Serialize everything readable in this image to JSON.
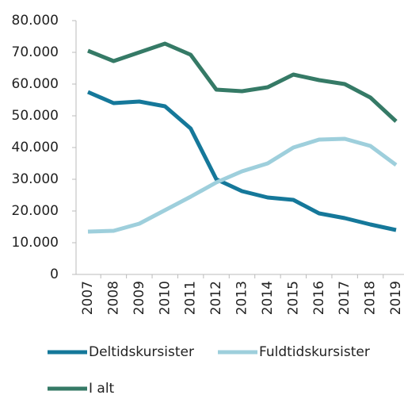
{
  "chart_data": {
    "type": "line",
    "categories": [
      "2007",
      "2008",
      "2009",
      "2010",
      "2011",
      "2012",
      "2013",
      "2014",
      "2015",
      "2016",
      "2017",
      "2018",
      "2019"
    ],
    "series": [
      {
        "name": "Deltidskursister",
        "color": "#15789a",
        "values": [
          57500,
          54000,
          54500,
          53000,
          46000,
          30000,
          26250,
          24250,
          23500,
          19250,
          17750,
          15750,
          14000
        ]
      },
      {
        "name": "Fuldtidskursister",
        "color": "#9ecfdc",
        "values": [
          13500,
          13750,
          16000,
          20250,
          24500,
          29000,
          32500,
          35000,
          40000,
          42500,
          42750,
          40500,
          34500
        ]
      },
      {
        "name": "I alt",
        "color": "#357a66",
        "values": [
          70500,
          67250,
          70000,
          72750,
          69250,
          58250,
          57750,
          59000,
          63000,
          61250,
          60000,
          55750,
          48250
        ]
      }
    ],
    "ylim": [
      0,
      80000
    ],
    "yticks": [
      0,
      {
        "value": 10000,
        "label": "10.000"
      },
      {
        "value": 20000,
        "label": "20.000"
      },
      {
        "value": 30000,
        "label": "30.000"
      },
      {
        "value": 40000,
        "label": "40.000"
      },
      {
        "value": 50000,
        "label": "50.000"
      },
      {
        "value": 60000,
        "label": "60.000"
      },
      {
        "value": 70000,
        "label": "70.000"
      },
      {
        "value": 80000,
        "label": "80.000"
      }
    ],
    "grid": false
  }
}
